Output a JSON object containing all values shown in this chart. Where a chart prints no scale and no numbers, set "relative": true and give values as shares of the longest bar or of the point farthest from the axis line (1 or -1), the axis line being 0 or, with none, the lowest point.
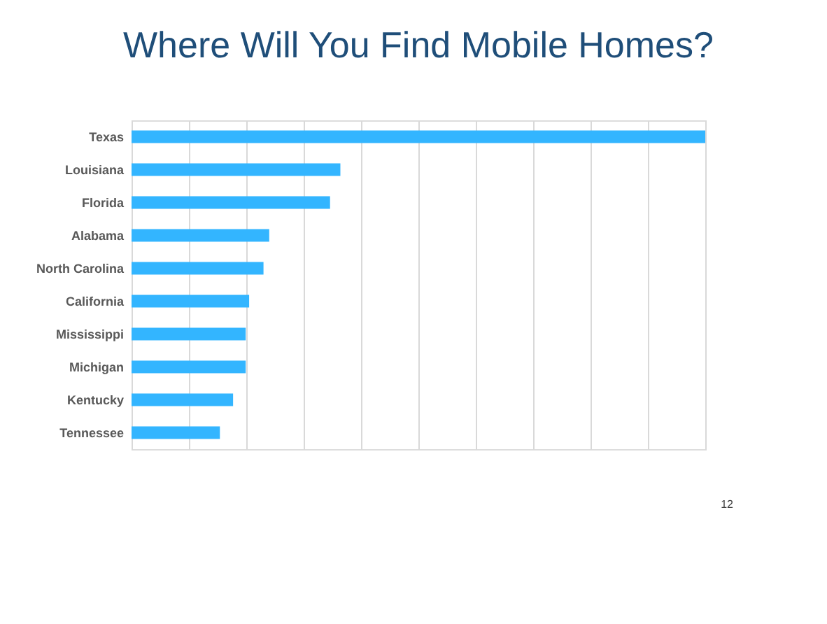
{
  "chart_data": {
    "type": "bar",
    "orientation": "horizontal",
    "relative": true,
    "title": "Where Will You Find Mobile Homes?",
    "categories": [
      "Texas",
      "Louisiana",
      "Florida",
      "Alabama",
      "North Carolina",
      "California",
      "Mississippi",
      "Michigan",
      "Kentucky",
      "Tennessee"
    ],
    "values": [
      1,
      0.364,
      0.346,
      0.24,
      0.23,
      0.205,
      0.199,
      0.199,
      0.177,
      0.154
    ],
    "color": "#33b5ff",
    "grid": "x",
    "annotations": [
      "12"
    ]
  }
}
